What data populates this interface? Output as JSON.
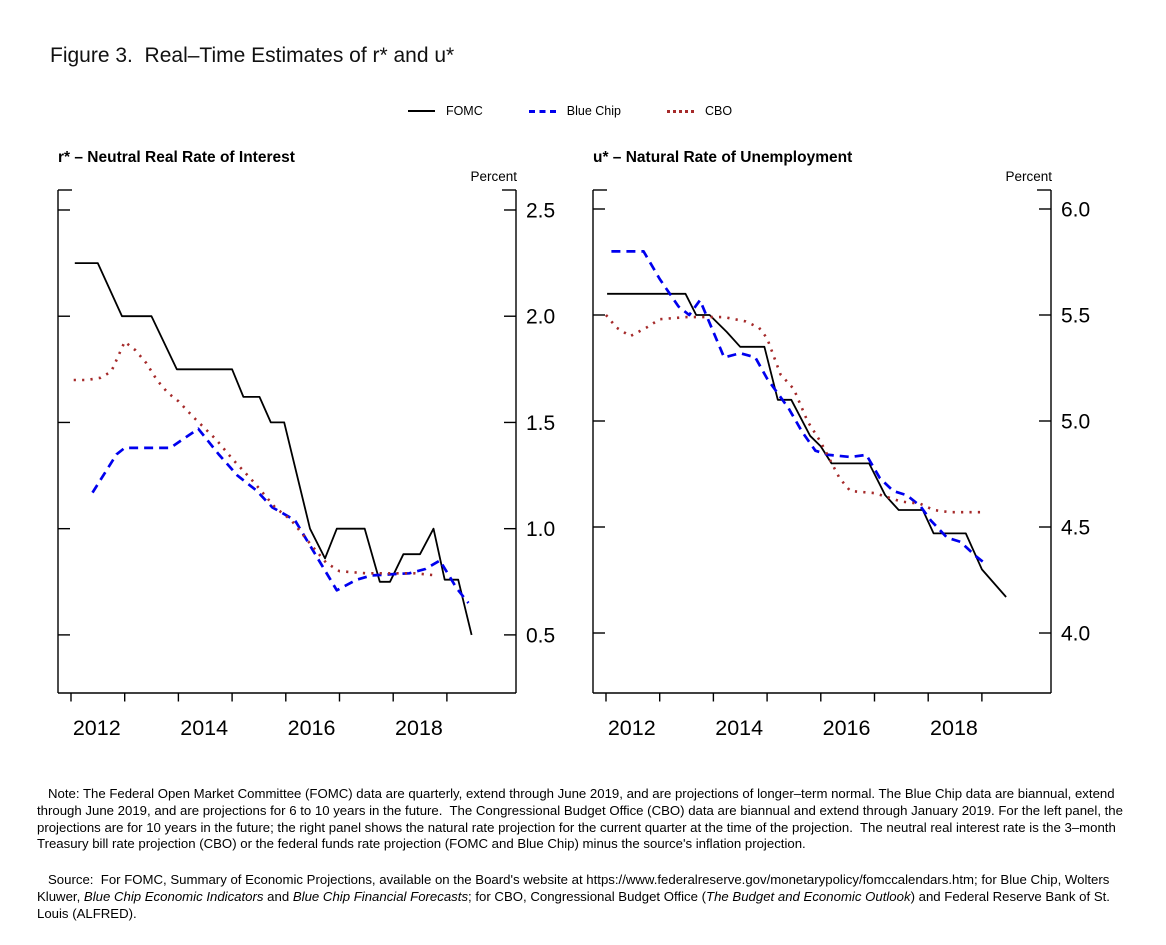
{
  "figure_title": "Figure 3.  Real–Time Estimates of r* and u*",
  "legend": [
    {
      "label": "FOMC",
      "style": "solid",
      "color": "#000000"
    },
    {
      "label": "Blue Chip",
      "style": "dashed",
      "color": "#0000EE"
    },
    {
      "label": "CBO",
      "style": "dotted",
      "color": "#A52A2A"
    }
  ],
  "chart_data": [
    {
      "id": "r-star",
      "type": "line",
      "title": "r* – Neutral Real Rate of Interest",
      "unit_label": "Percent",
      "xlabel": "",
      "ylabel": "Percent",
      "grid": false,
      "legend_position": "top-center",
      "xlim": [
        2011.758,
        2020.287
      ],
      "ylim": [
        0.2265,
        2.5941
      ],
      "yticks": [
        0.5,
        1.0,
        1.5,
        2.0,
        2.5
      ],
      "xticks": [
        2012,
        2013,
        2014,
        2015,
        2016,
        2017,
        2018,
        2019
      ],
      "xtick_labels": [
        {
          "label": "2012",
          "x": 2012.48
        },
        {
          "label": "2014",
          "x": 2014.48
        },
        {
          "label": "2016",
          "x": 2016.48
        },
        {
          "label": "2018",
          "x": 2018.48
        }
      ],
      "series": [
        {
          "name": "FOMC",
          "style": "solid",
          "color": "#000000",
          "x": [
            2012.07,
            2012.5,
            2012.95,
            2013.5,
            2013.97,
            2015.0,
            2015.21,
            2015.51,
            2015.72,
            2015.97,
            2016.45,
            2016.73,
            2016.95,
            2017.47,
            2017.75,
            2017.94,
            2018.19,
            2018.5,
            2018.75,
            2018.96,
            2019.21,
            2019.46
          ],
          "y": [
            2.25,
            2.25,
            2.0,
            2.0,
            1.75,
            1.75,
            1.62,
            1.62,
            1.5,
            1.5,
            1.0,
            0.86,
            1.0,
            1.0,
            0.75,
            0.75,
            0.88,
            0.88,
            1.0,
            0.76,
            0.76,
            0.5
          ]
        },
        {
          "name": "Blue Chip",
          "style": "dashed",
          "color": "#0000EE",
          "x": [
            2012.4,
            2012.85,
            2013.0,
            2013.85,
            2014.37,
            2014.75,
            2015.1,
            2015.45,
            2015.75,
            2016.17,
            2016.95,
            2017.32,
            2017.6,
            2018.3,
            2018.6,
            2018.87,
            2019.18,
            2019.4
          ],
          "y": [
            1.17,
            1.35,
            1.38,
            1.38,
            1.47,
            1.35,
            1.25,
            1.18,
            1.1,
            1.04,
            0.71,
            0.76,
            0.78,
            0.79,
            0.81,
            0.85,
            0.72,
            0.65
          ]
        },
        {
          "name": "CBO",
          "style": "dotted",
          "color": "#A52A2A",
          "x": [
            2012.05,
            2012.3,
            2012.55,
            2012.75,
            2013.0,
            2013.2,
            2013.4,
            2013.6,
            2013.8,
            2014.0,
            2014.3,
            2014.7,
            2015.0,
            2015.4,
            2015.8,
            2016.1,
            2016.45,
            2016.75,
            2017.0,
            2017.5,
            2018.0,
            2018.4,
            2018.8
          ],
          "y": [
            1.7,
            1.7,
            1.71,
            1.74,
            1.88,
            1.84,
            1.78,
            1.7,
            1.64,
            1.6,
            1.52,
            1.42,
            1.33,
            1.22,
            1.1,
            1.04,
            0.93,
            0.84,
            0.8,
            0.79,
            0.79,
            0.79,
            0.78
          ]
        }
      ]
    },
    {
      "id": "u-star",
      "type": "line",
      "title": "u* – Natural Rate of Unemployment",
      "unit_label": "Percent",
      "xlabel": "",
      "ylabel": "Percent",
      "grid": false,
      "legend_position": "top-center",
      "xlim": [
        2011.758,
        2020.287
      ],
      "ylim": [
        3.717,
        6.0896
      ],
      "yticks": [
        4.0,
        4.5,
        5.0,
        5.5,
        6.0
      ],
      "xticks": [
        2012,
        2013,
        2014,
        2015,
        2016,
        2017,
        2018,
        2019
      ],
      "xtick_labels": [
        {
          "label": "2012",
          "x": 2012.48
        },
        {
          "label": "2014",
          "x": 2014.48
        },
        {
          "label": "2016",
          "x": 2016.48
        },
        {
          "label": "2018",
          "x": 2018.48
        }
      ],
      "series": [
        {
          "name": "FOMC",
          "style": "solid",
          "color": "#000000",
          "x": [
            2012.02,
            2013.48,
            2013.68,
            2013.93,
            2014.25,
            2014.5,
            2014.95,
            2015.2,
            2015.45,
            2015.8,
            2016.0,
            2016.2,
            2016.9,
            2017.2,
            2017.45,
            2017.9,
            2018.1,
            2018.7,
            2019.0,
            2019.45
          ],
          "y": [
            5.6,
            5.6,
            5.5,
            5.5,
            5.42,
            5.35,
            5.35,
            5.1,
            5.1,
            4.93,
            4.88,
            4.8,
            4.8,
            4.65,
            4.58,
            4.58,
            4.47,
            4.47,
            4.3,
            4.17
          ]
        },
        {
          "name": "Blue Chip",
          "style": "dashed",
          "color": "#0000EE",
          "x": [
            2012.1,
            2012.7,
            2013.0,
            2013.35,
            2013.55,
            2013.75,
            2014.2,
            2014.5,
            2014.78,
            2015.0,
            2015.4,
            2015.65,
            2015.9,
            2016.15,
            2016.55,
            2016.85,
            2017.1,
            2017.35,
            2017.6,
            2017.85,
            2018.05,
            2018.35,
            2018.6,
            2018.9,
            2019.05
          ],
          "y": [
            5.8,
            5.8,
            5.67,
            5.54,
            5.5,
            5.57,
            5.3,
            5.32,
            5.3,
            5.2,
            5.06,
            4.95,
            4.86,
            4.84,
            4.83,
            4.84,
            4.73,
            4.67,
            4.65,
            4.6,
            4.53,
            4.45,
            4.43,
            4.36,
            4.33
          ]
        },
        {
          "name": "CBO",
          "style": "dotted",
          "color": "#A52A2A",
          "x": [
            2012.0,
            2012.2,
            2012.45,
            2012.75,
            2013.0,
            2013.5,
            2014.2,
            2014.6,
            2014.85,
            2015.0,
            2015.25,
            2015.5,
            2015.75,
            2016.0,
            2016.35,
            2016.55,
            2017.0,
            2017.25,
            2017.5,
            2017.85,
            2018.1,
            2018.4,
            2019.0
          ],
          "y": [
            5.5,
            5.44,
            5.4,
            5.44,
            5.48,
            5.49,
            5.49,
            5.47,
            5.44,
            5.39,
            5.22,
            5.15,
            5.0,
            4.9,
            4.73,
            4.67,
            4.66,
            4.64,
            4.62,
            4.61,
            4.58,
            4.57,
            4.57
          ]
        }
      ]
    }
  ],
  "note_text": "Note: The Federal Open Market Committee (FOMC) data are quarterly, extend through June 2019, and are projections of longer–term normal. The Blue Chip data are biannual, extend through June 2019, and are projections for 6 to 10 years in the future.  The Congressional Budget Office (CBO) data are biannual and extend through January 2019. For the left panel, the projections are for 10 years in the future; the right panel shows the natural rate projection for the current quarter at the time of the projection.  The neutral real interest rate is the 3–month Treasury bill rate projection (CBO) or the federal funds rate projection (FOMC and Blue Chip) minus the source's inflation projection.",
  "source_segments": [
    {
      "text": "Source:  For FOMC, Summary of Economic Projections, available on the Board's website at https://www.federalreserve.gov/monetarypolicy/fomccalendars.htm; for Blue Chip, Wolters Kluwer, ",
      "italic": false
    },
    {
      "text": "Blue Chip Economic Indicators",
      "italic": true
    },
    {
      "text": " and ",
      "italic": false
    },
    {
      "text": "Blue Chip Financial Forecasts",
      "italic": true
    },
    {
      "text": "; for CBO, Congressional Budget Office (",
      "italic": false
    },
    {
      "text": "The Budget and Economic Outlook",
      "italic": true
    },
    {
      "text": ") and Federal Reserve Bank of St. Louis (ALFRED).",
      "italic": false
    }
  ]
}
